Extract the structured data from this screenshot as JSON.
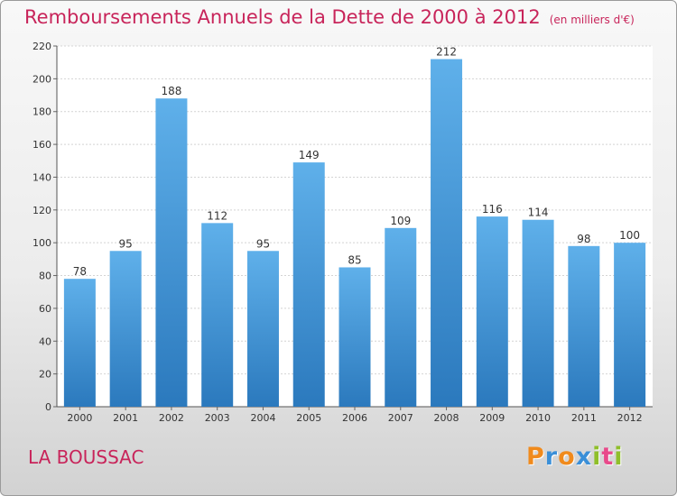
{
  "title": "Remboursements Annuels de la Dette de 2000 à 2012",
  "unit": "(en milliers d'€)",
  "commune": "LA BOUSSAC",
  "logo": {
    "letters": [
      "P",
      "r",
      "o",
      "x",
      "i",
      "t",
      "i"
    ],
    "colors": [
      "#f08a1c",
      "#3a8fd8",
      "#f08a1c",
      "#3a8fd8",
      "#8fbf2a",
      "#e84a8a",
      "#8fbf2a"
    ]
  },
  "colors": {
    "bar_top": "#5fb0ea",
    "bar_bottom": "#2b79bd",
    "title": "#c8245a"
  },
  "chart_data": {
    "type": "bar",
    "categories": [
      "2000",
      "2001",
      "2002",
      "2003",
      "2004",
      "2005",
      "2006",
      "2007",
      "2008",
      "2009",
      "2010",
      "2011",
      "2012"
    ],
    "values": [
      78,
      95,
      188,
      112,
      95,
      149,
      85,
      109,
      212,
      116,
      114,
      98,
      100
    ],
    "ylim": [
      0,
      220
    ],
    "yticks": [
      0,
      20,
      40,
      60,
      80,
      100,
      120,
      140,
      160,
      180,
      200,
      220
    ],
    "grid": true,
    "data_labels": true
  }
}
